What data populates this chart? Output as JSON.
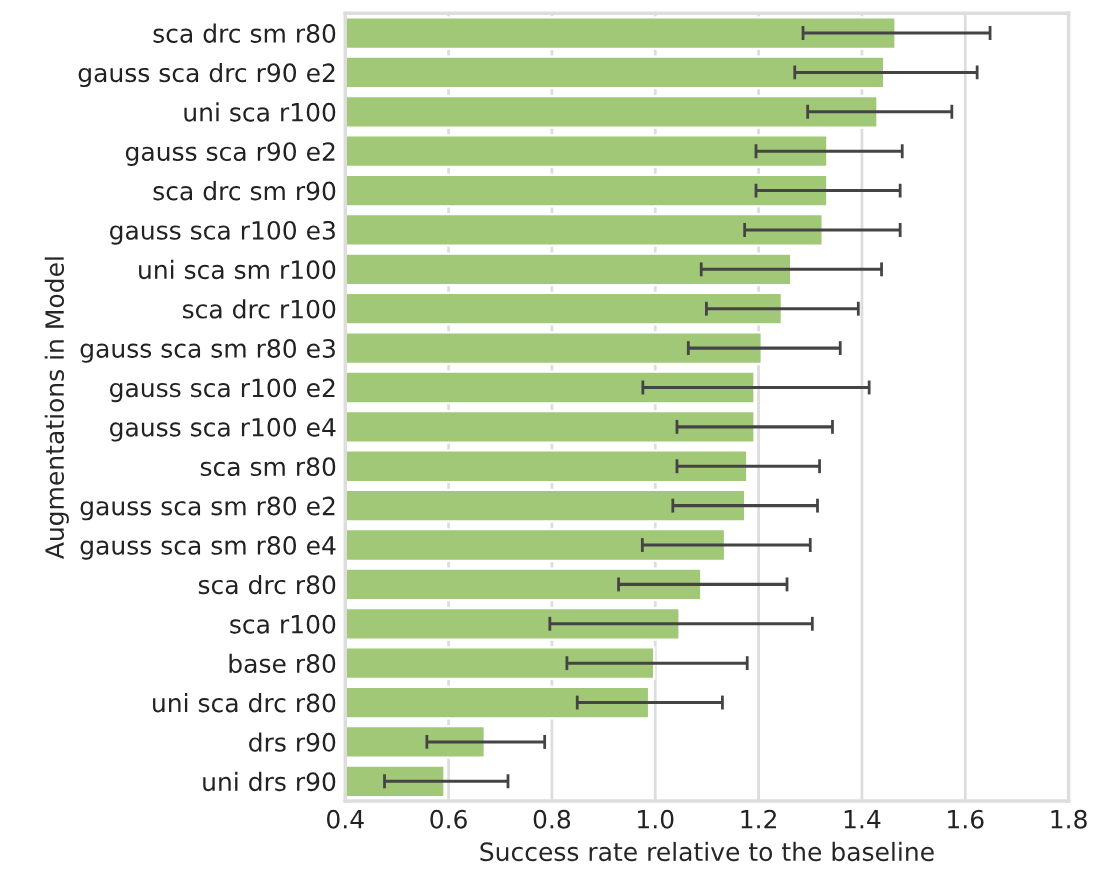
{
  "chart_data": {
    "type": "bar",
    "orientation": "horizontal",
    "xlabel": "Success rate relative to the baseline",
    "ylabel": "Augmentations in Model",
    "categories": [
      "sca drc sm r80",
      "gauss sca drc r90 e2",
      "uni sca r100",
      "gauss sca r90 e2",
      "sca drc sm r90",
      "gauss sca r100 e3",
      "uni sca sm r100",
      "sca drc r100",
      "gauss sca sm r80 e3",
      "gauss sca r100 e2",
      "gauss sca r100 e4",
      "sca sm r80",
      "gauss sca sm r80 e2",
      "gauss sca sm r80 e4",
      "sca drc r80",
      "sca r100",
      "base r80",
      "uni sca drc r80",
      "drs r90",
      "uni drs r90"
    ],
    "values": [
      1.465,
      1.443,
      1.43,
      1.333,
      1.333,
      1.324,
      1.263,
      1.245,
      1.206,
      1.192,
      1.192,
      1.178,
      1.174,
      1.135,
      1.089,
      1.047,
      0.998,
      0.988,
      0.67,
      0.592
    ],
    "errors": [
      [
        1.286,
        1.648
      ],
      [
        1.27,
        1.623
      ],
      [
        1.295,
        1.574
      ],
      [
        1.195,
        1.478
      ],
      [
        1.195,
        1.474
      ],
      [
        1.173,
        1.474
      ],
      [
        1.089,
        1.438
      ],
      [
        1.099,
        1.393
      ],
      [
        1.064,
        1.358
      ],
      [
        0.976,
        1.414
      ],
      [
        1.042,
        1.343
      ],
      [
        1.042,
        1.318
      ],
      [
        1.034,
        1.314
      ],
      [
        0.975,
        1.3
      ],
      [
        0.929,
        1.255
      ],
      [
        0.796,
        1.304
      ],
      [
        0.829,
        1.178
      ],
      [
        0.849,
        1.13
      ],
      [
        0.558,
        0.786
      ],
      [
        0.476,
        0.715
      ]
    ],
    "color": "#a1c877",
    "xlim": [
      0.4,
      1.8
    ],
    "xticks": [
      0.4,
      0.6,
      0.8,
      {
        "value": 1.0,
        "label": "1.0"
      },
      1.2,
      1.4,
      1.6,
      1.8
    ],
    "grid": "x"
  }
}
